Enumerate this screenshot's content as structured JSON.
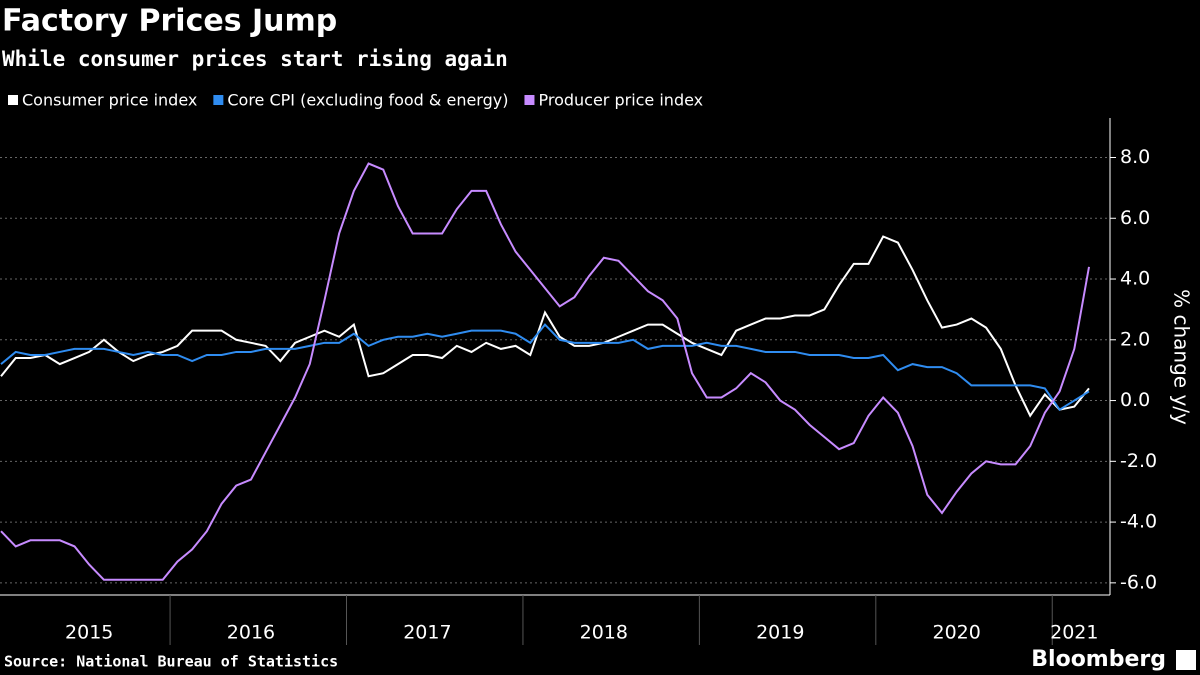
{
  "chart_data": {
    "type": "line",
    "title": "Factory Prices Jump",
    "subtitle": "While consumer prices start rising again",
    "y_label": "% change y/y",
    "source": "Source: National Bureau of Statistics",
    "brand": "Bloomberg",
    "categories": [
      null,
      null,
      null,
      null,
      null,
      null,
      "2015",
      null,
      null,
      null,
      null,
      null,
      null,
      null,
      null,
      null,
      null,
      "2016",
      null,
      null,
      null,
      null,
      null,
      null,
      null,
      null,
      null,
      null,
      null,
      "2017",
      null,
      null,
      null,
      null,
      null,
      null,
      null,
      null,
      null,
      null,
      null,
      "2018",
      null,
      null,
      null,
      null,
      null,
      null,
      null,
      null,
      null,
      null,
      null,
      "2019",
      null,
      null,
      null,
      null,
      null,
      null,
      null,
      null,
      null,
      null,
      null,
      "2020",
      null,
      null,
      null,
      null,
      null,
      null,
      null,
      "2021",
      null
    ],
    "series": [
      {
        "name": "Consumer price index",
        "color": "#ffffff",
        "values": [
          0.8,
          1.4,
          1.4,
          1.5,
          1.2,
          1.4,
          1.6,
          2.0,
          1.6,
          1.3,
          1.5,
          1.6,
          1.8,
          2.3,
          2.3,
          2.3,
          2.0,
          1.9,
          1.8,
          1.3,
          1.9,
          2.1,
          2.3,
          2.1,
          2.5,
          0.8,
          0.9,
          1.2,
          1.5,
          1.5,
          1.4,
          1.8,
          1.6,
          1.9,
          1.7,
          1.8,
          1.5,
          2.9,
          2.1,
          1.8,
          1.8,
          1.9,
          2.1,
          2.3,
          2.5,
          2.5,
          2.2,
          1.9,
          1.7,
          1.5,
          2.3,
          2.5,
          2.7,
          2.7,
          2.8,
          2.8,
          3.0,
          3.8,
          4.5,
          4.5,
          5.4,
          5.2,
          4.3,
          3.3,
          2.4,
          2.5,
          2.7,
          2.4,
          1.7,
          0.5,
          -0.5,
          0.2,
          -0.3,
          -0.2,
          0.4
        ]
      },
      {
        "name": "Core CPI (excluding food & energy)",
        "color": "#2f8cf0",
        "values": [
          1.2,
          1.6,
          1.5,
          1.5,
          1.6,
          1.7,
          1.7,
          1.7,
          1.6,
          1.5,
          1.6,
          1.5,
          1.5,
          1.3,
          1.5,
          1.5,
          1.6,
          1.6,
          1.7,
          1.7,
          1.7,
          1.8,
          1.9,
          1.9,
          2.2,
          1.8,
          2.0,
          2.1,
          2.1,
          2.2,
          2.1,
          2.2,
          2.3,
          2.3,
          2.3,
          2.2,
          1.9,
          2.5,
          2.0,
          1.9,
          1.9,
          1.9,
          1.9,
          2.0,
          1.7,
          1.8,
          1.8,
          1.8,
          1.9,
          1.8,
          1.8,
          1.7,
          1.6,
          1.6,
          1.6,
          1.5,
          1.5,
          1.5,
          1.4,
          1.4,
          1.5,
          1.0,
          1.2,
          1.1,
          1.1,
          0.9,
          0.5,
          0.5,
          0.5,
          0.5,
          0.5,
          0.4,
          -0.3,
          0.0,
          0.3
        ]
      },
      {
        "name": "Producer price index",
        "color": "#c78bff",
        "values": [
          -4.3,
          -4.8,
          -4.6,
          -4.6,
          -4.6,
          -4.8,
          -5.4,
          -5.9,
          -5.9,
          -5.9,
          -5.9,
          -5.9,
          -5.3,
          -4.9,
          -4.3,
          -3.4,
          -2.8,
          -2.6,
          -1.7,
          -0.8,
          0.1,
          1.2,
          3.3,
          5.5,
          6.9,
          7.8,
          7.6,
          6.4,
          5.5,
          5.5,
          5.5,
          6.3,
          6.9,
          6.9,
          5.8,
          4.9,
          4.3,
          3.7,
          3.1,
          3.4,
          4.1,
          4.7,
          4.6,
          4.1,
          3.6,
          3.3,
          2.7,
          0.9,
          0.1,
          0.1,
          0.4,
          0.9,
          0.6,
          0.0,
          -0.3,
          -0.8,
          -1.2,
          -1.6,
          -1.4,
          -0.5,
          0.1,
          -0.4,
          -1.5,
          -3.1,
          -3.7,
          -3.0,
          -2.4,
          -2.0,
          -2.1,
          -2.1,
          -1.5,
          -0.4,
          0.3,
          1.7,
          4.4
        ]
      }
    ],
    "ylim": [
      -6.4,
      9.3
    ],
    "yticks": [
      {
        "value": -6,
        "label": "-6.0"
      },
      {
        "value": -4,
        "label": "-4.0"
      },
      {
        "value": -2,
        "label": "-2.0"
      },
      {
        "value": 0,
        "label": "0.0"
      },
      {
        "value": 2,
        "label": "2.0"
      },
      {
        "value": 4,
        "label": "4.0"
      },
      {
        "value": 6,
        "label": "6.0"
      },
      {
        "value": 8,
        "label": "8.0"
      }
    ],
    "grid": true
  }
}
